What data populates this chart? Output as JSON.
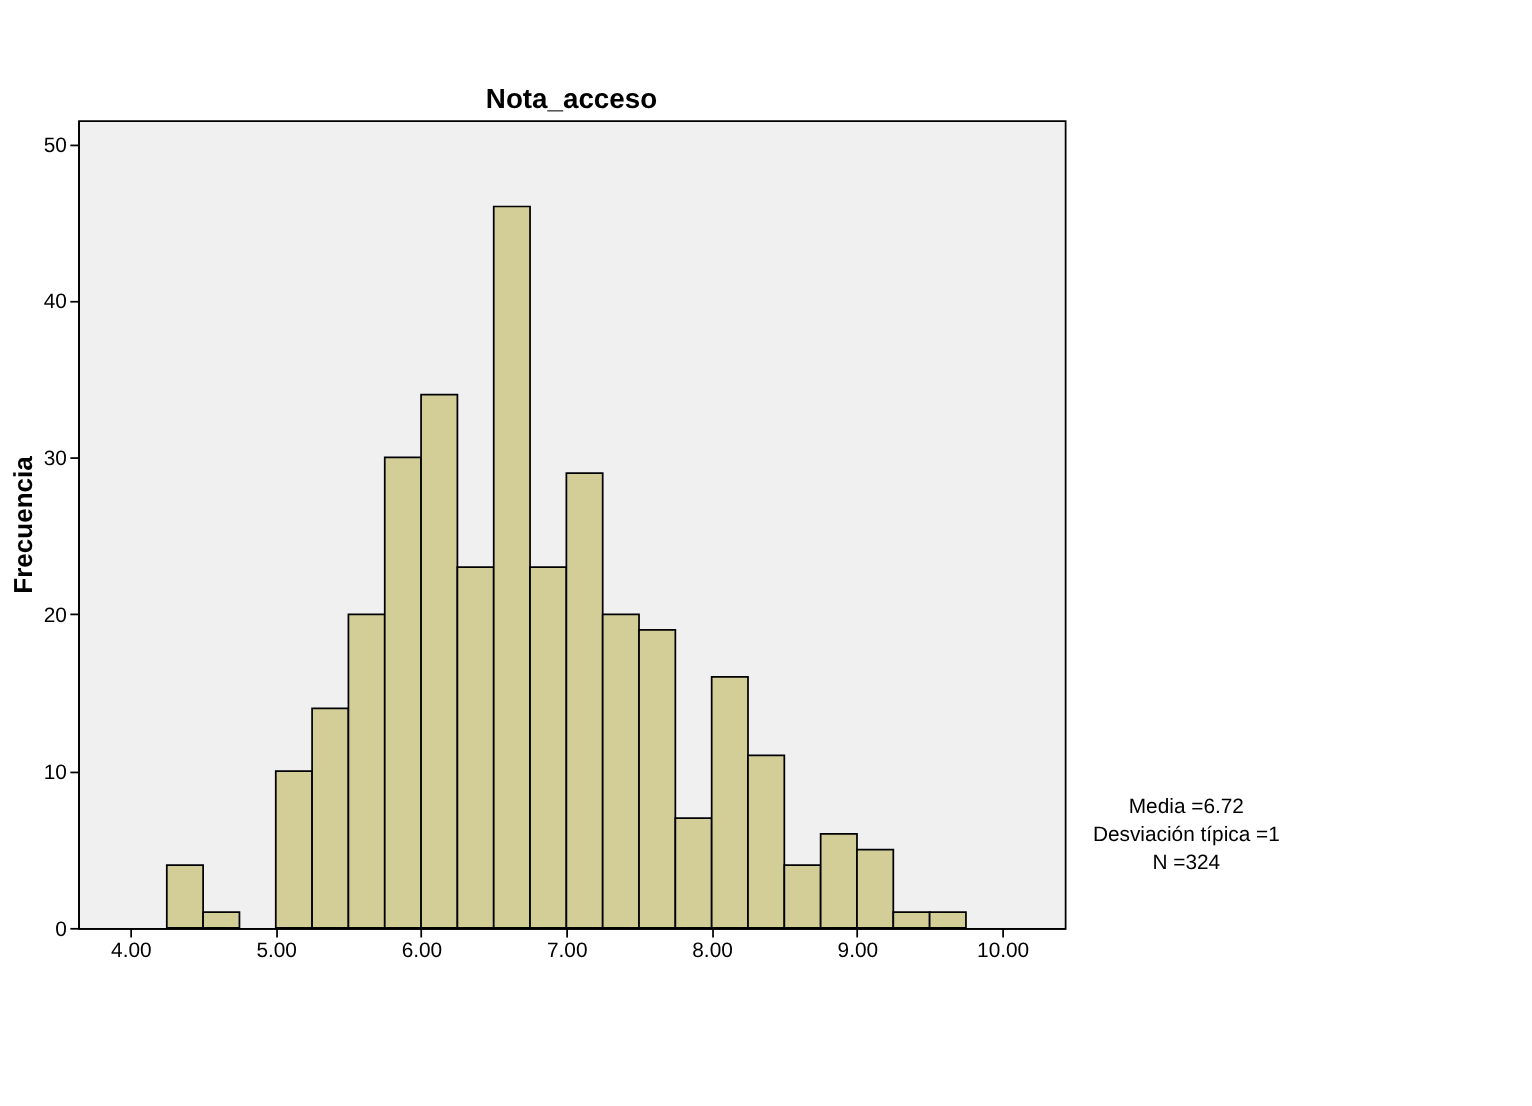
{
  "chart_data": {
    "type": "histogram",
    "title": "Nota_acceso",
    "ylabel": "Frecuencia",
    "bins": [
      4.25,
      4.5,
      4.75,
      5.0,
      5.25,
      5.5,
      5.75,
      6.0,
      6.25,
      6.5,
      6.75,
      7.0,
      7.25,
      7.5,
      7.75,
      8.0,
      8.25,
      8.5,
      8.75,
      9.0,
      9.25,
      9.5,
      9.75
    ],
    "values": [
      4,
      1,
      0,
      10,
      14,
      20,
      30,
      34,
      23,
      46,
      23,
      29,
      20,
      19,
      7,
      16,
      11,
      4,
      6,
      5,
      1,
      1
    ],
    "color": "#d3ce98",
    "xlim": [
      3.64,
      10.43
    ],
    "xticks": [
      {
        "value": 4,
        "label": "4.00"
      },
      {
        "value": 5,
        "label": "5.00"
      },
      {
        "value": 6,
        "label": "6.00"
      },
      {
        "value": 7,
        "label": "7.00"
      },
      {
        "value": 8,
        "label": "8.00"
      },
      {
        "value": 9,
        "label": "9.00"
      },
      {
        "value": 10,
        "label": "10.00"
      }
    ],
    "ylim": [
      0,
      51.5
    ],
    "yticks": [
      0,
      10,
      20,
      30,
      40,
      50
    ],
    "grid": false,
    "annotations": [
      "Media =6.72",
      "Desviación típica =1",
      "N =324"
    ]
  }
}
